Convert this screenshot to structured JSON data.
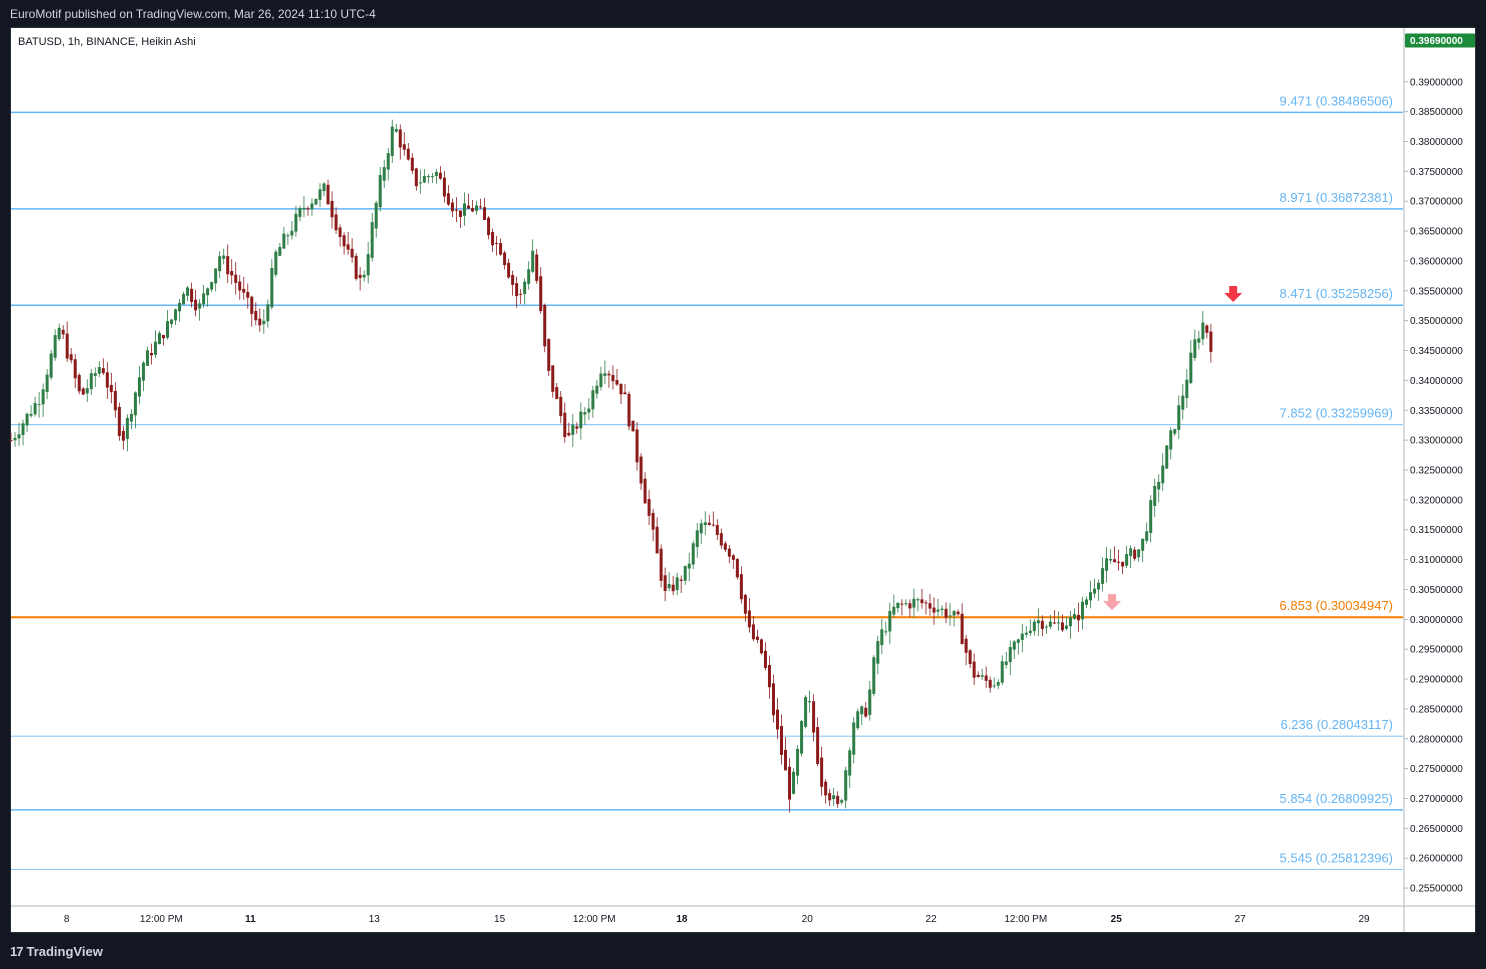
{
  "header": {
    "published_by": "EuroMotif published on TradingView.com, Mar 26, 2024 11:10 UTC-4"
  },
  "chart_header": {
    "symbol_line": "BATUSD, 1h, BINANCE, Heikin Ashi"
  },
  "footer": {
    "brand": "TradingView",
    "logo_glyph": "17"
  },
  "colors": {
    "up_candle": "#2e7d46",
    "down_candle": "#8b1a1a",
    "fib_line": "#64b5f6",
    "fib_label": "#64b5f6",
    "key_level": "#f57c00",
    "price_badge": "#1b8a3a",
    "sell_arrow": "#f23645",
    "sell_arrow_light": "#f7a1a8"
  },
  "chart_data": {
    "type": "candlestick",
    "title": "",
    "symbol": "BATUSD",
    "timeframe": "1h",
    "exchange": "BINANCE",
    "style": "Heikin Ashi",
    "ylim": [
      0.252,
      0.399
    ],
    "y_ticks": [
      "0.39000000",
      "0.38500000",
      "0.38000000",
      "0.37500000",
      "0.37000000",
      "0.36500000",
      "0.36000000",
      "0.35500000",
      "0.35000000",
      "0.34500000",
      "0.34000000",
      "0.33500000",
      "0.33000000",
      "0.32500000",
      "0.32000000",
      "0.31500000",
      "0.31000000",
      "0.30500000",
      "0.30000000",
      "0.29500000",
      "0.29000000",
      "0.28500000",
      "0.28000000",
      "0.27500000",
      "0.27000000",
      "0.26500000",
      "0.26000000",
      "0.25500000"
    ],
    "y_tick_values": [
      0.39,
      0.385,
      0.38,
      0.375,
      0.37,
      0.365,
      0.36,
      0.355,
      0.35,
      0.345,
      0.34,
      0.335,
      0.33,
      0.325,
      0.32,
      0.315,
      0.31,
      0.305,
      0.3,
      0.295,
      0.29,
      0.285,
      0.28,
      0.275,
      0.27,
      0.265,
      0.26,
      0.255
    ],
    "x_ticks": [
      {
        "label": "8",
        "bold": false,
        "t": 0.04
      },
      {
        "label": "12:00 PM",
        "bold": false,
        "t": 0.108
      },
      {
        "label": "11",
        "bold": true,
        "t": 0.172
      },
      {
        "label": "13",
        "bold": false,
        "t": 0.261
      },
      {
        "label": "15",
        "bold": false,
        "t": 0.351
      },
      {
        "label": "12:00 PM",
        "bold": false,
        "t": 0.419
      },
      {
        "label": "18",
        "bold": true,
        "t": 0.482
      },
      {
        "label": "20",
        "bold": false,
        "t": 0.572
      },
      {
        "label": "22",
        "bold": false,
        "t": 0.661
      },
      {
        "label": "12:00 PM",
        "bold": false,
        "t": 0.729
      },
      {
        "label": "25",
        "bold": true,
        "t": 0.794
      },
      {
        "label": "27",
        "bold": false,
        "t": 0.883
      },
      {
        "label": "29",
        "bold": false,
        "t": 0.972
      }
    ],
    "last_price": "0.39690000",
    "last_price_value": 0.3969,
    "fib_levels": [
      {
        "label": "9.471 (0.38486506)",
        "value": 0.38486506,
        "color": "#64b5f6",
        "width": 1.5
      },
      {
        "label": "8.971 (0.36872381)",
        "value": 0.36872381,
        "color": "#64b5f6",
        "width": 1.5
      },
      {
        "label": "8.471 (0.35258256)",
        "value": 0.35258256,
        "color": "#64b5f6",
        "width": 1.5
      },
      {
        "label": "7.852 (0.33259969)",
        "value": 0.33259969,
        "color": "#90caf9",
        "width": 1.2
      },
      {
        "label": "6.853 (0.30034947)",
        "value": 0.30034947,
        "color": "#f57c00",
        "width": 2
      },
      {
        "label": "6.236 (0.28043117)",
        "value": 0.28043117,
        "color": "#90caf9",
        "width": 1.2
      },
      {
        "label": "5.854 (0.26809925)",
        "value": 0.26809925,
        "color": "#64b5f6",
        "width": 1.5
      },
      {
        "label": "5.545 (0.25812396)",
        "value": 0.25812396,
        "color": "#90caf9",
        "width": 1.2
      }
    ],
    "arrows": [
      {
        "t": 0.878,
        "price": 0.3543,
        "color": "#f23645"
      },
      {
        "t": 0.791,
        "price": 0.3027,
        "color": "#f7a1a8"
      }
    ],
    "path_anchors": [
      [
        0.0,
        0.33
      ],
      [
        0.02,
        0.337
      ],
      [
        0.035,
        0.349
      ],
      [
        0.05,
        0.337
      ],
      [
        0.065,
        0.343
      ],
      [
        0.08,
        0.33
      ],
      [
        0.095,
        0.343
      ],
      [
        0.115,
        0.35
      ],
      [
        0.125,
        0.356
      ],
      [
        0.135,
        0.352
      ],
      [
        0.15,
        0.361
      ],
      [
        0.165,
        0.355
      ],
      [
        0.18,
        0.348
      ],
      [
        0.19,
        0.361
      ],
      [
        0.21,
        0.369
      ],
      [
        0.225,
        0.372
      ],
      [
        0.24,
        0.362
      ],
      [
        0.252,
        0.356
      ],
      [
        0.265,
        0.373
      ],
      [
        0.275,
        0.383
      ],
      [
        0.29,
        0.373
      ],
      [
        0.305,
        0.375
      ],
      [
        0.32,
        0.368
      ],
      [
        0.335,
        0.369
      ],
      [
        0.345,
        0.364
      ],
      [
        0.352,
        0.362
      ],
      [
        0.365,
        0.353
      ],
      [
        0.375,
        0.362
      ],
      [
        0.385,
        0.342
      ],
      [
        0.4,
        0.33
      ],
      [
        0.415,
        0.336
      ],
      [
        0.425,
        0.343
      ],
      [
        0.44,
        0.338
      ],
      [
        0.455,
        0.321
      ],
      [
        0.47,
        0.304
      ],
      [
        0.485,
        0.308
      ],
      [
        0.495,
        0.316
      ],
      [
        0.505,
        0.315
      ],
      [
        0.52,
        0.31
      ],
      [
        0.53,
        0.298
      ],
      [
        0.54,
        0.294
      ],
      [
        0.548,
        0.284
      ],
      [
        0.56,
        0.27
      ],
      [
        0.572,
        0.288
      ],
      [
        0.582,
        0.273
      ],
      [
        0.595,
        0.268
      ],
      [
        0.605,
        0.283
      ],
      [
        0.615,
        0.285
      ],
      [
        0.622,
        0.296
      ],
      [
        0.635,
        0.302
      ],
      [
        0.65,
        0.303
      ],
      [
        0.665,
        0.302
      ],
      [
        0.68,
        0.3
      ],
      [
        0.69,
        0.291
      ],
      [
        0.705,
        0.289
      ],
      [
        0.72,
        0.295
      ],
      [
        0.735,
        0.3
      ],
      [
        0.75,
        0.299
      ],
      [
        0.765,
        0.3
      ],
      [
        0.785,
        0.309
      ],
      [
        0.8,
        0.31
      ],
      [
        0.812,
        0.312
      ],
      [
        0.82,
        0.32
      ],
      [
        0.83,
        0.328
      ],
      [
        0.84,
        0.336
      ],
      [
        0.85,
        0.346
      ],
      [
        0.857,
        0.35
      ],
      [
        0.862,
        0.346
      ]
    ]
  }
}
